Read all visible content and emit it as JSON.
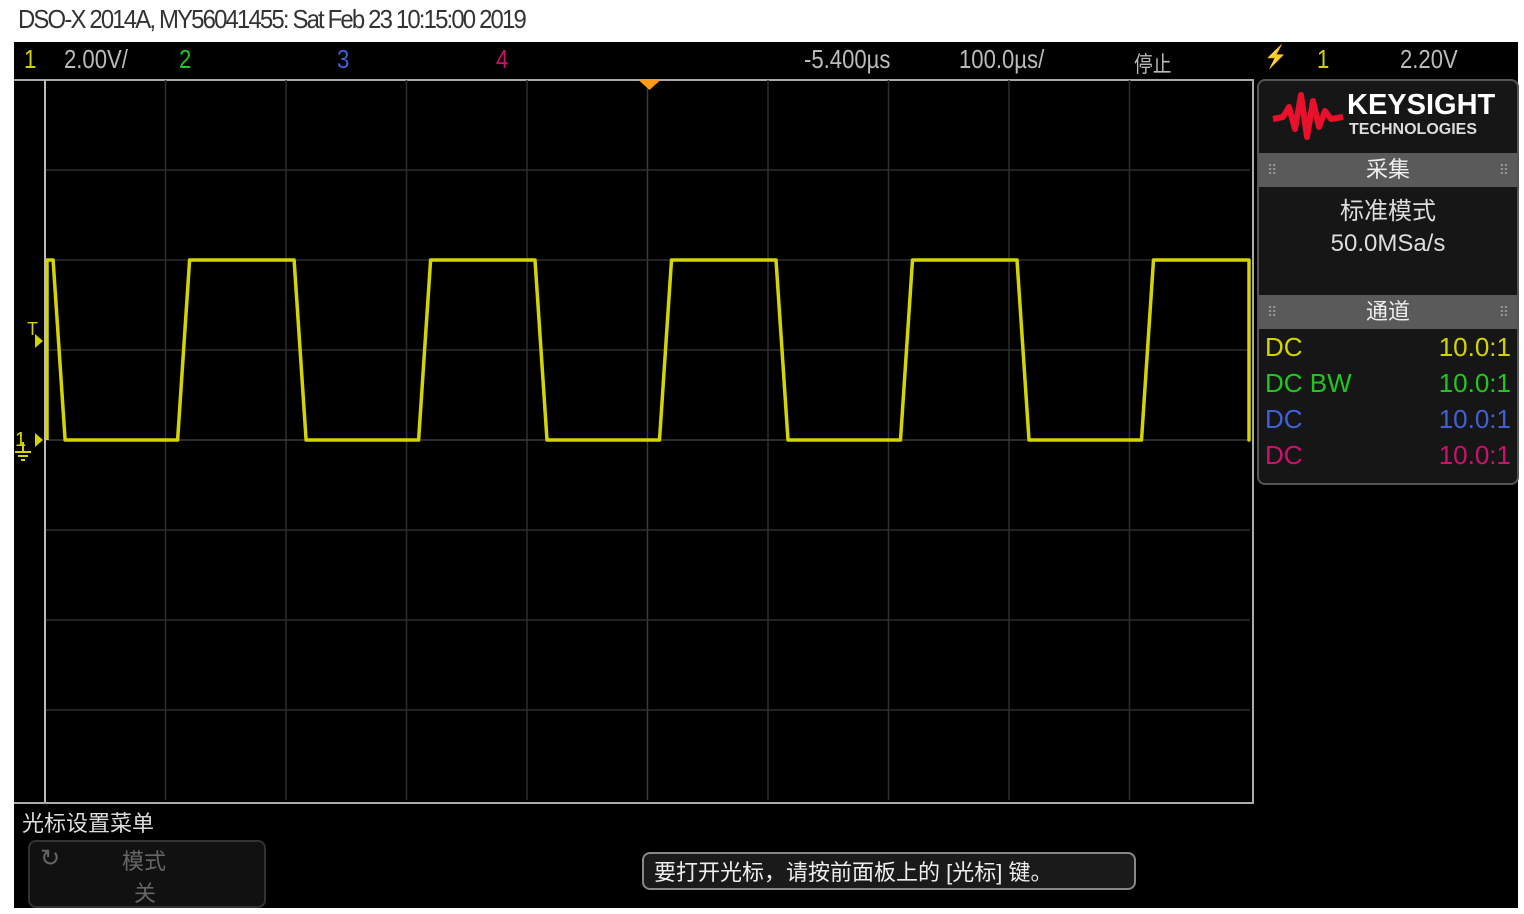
{
  "title": "DSO-X 2014A, MY56041455: Sat Feb 23 10:15:00 2019",
  "topbar": {
    "ch1_label": "1",
    "ch1_scale": "2.00V/",
    "ch2_label": "2",
    "ch3_label": "3",
    "ch4_label": "4",
    "delay": "-5.400µs",
    "timebase": "100.0µs/",
    "run_state": "停止",
    "trigger_slope_icon": "rising-edge-icon",
    "trigger_source": "1",
    "trigger_level": "2.20V"
  },
  "colors": {
    "ch1": "#d4d400",
    "ch2": "#1fc81f",
    "ch3": "#4060d8",
    "ch4": "#d0106c",
    "trigger_marker": "#ff9a1a",
    "logo": "#e8102a"
  },
  "markers": {
    "trigger": "T",
    "ground": "1"
  },
  "waveform": {
    "channel": "1",
    "high_v": 4.0,
    "low_v": 0.0,
    "period_us": 200,
    "duty": 0.5,
    "volts_per_div": 2.0,
    "us_per_div": 100
  },
  "panel": {
    "brand": "KEYSIGHT",
    "brand_sub": "TECHNOLOGIES",
    "acq_header": "采集",
    "acq_mode": "标准模式",
    "sample_rate": "50.0MSa/s",
    "chan_header": "通道",
    "channels": [
      {
        "coupling": "DC",
        "probe": "10.0:1"
      },
      {
        "coupling": "DC BW",
        "probe": "10.0:1"
      },
      {
        "coupling": "DC",
        "probe": "10.0:1"
      },
      {
        "coupling": "DC",
        "probe": "10.0:1"
      }
    ]
  },
  "menu": {
    "title": "光标设置菜单",
    "softkey_label": "模式",
    "softkey_value": "关",
    "message": "要打开光标，请按前面板上的 [光标] 键。"
  }
}
